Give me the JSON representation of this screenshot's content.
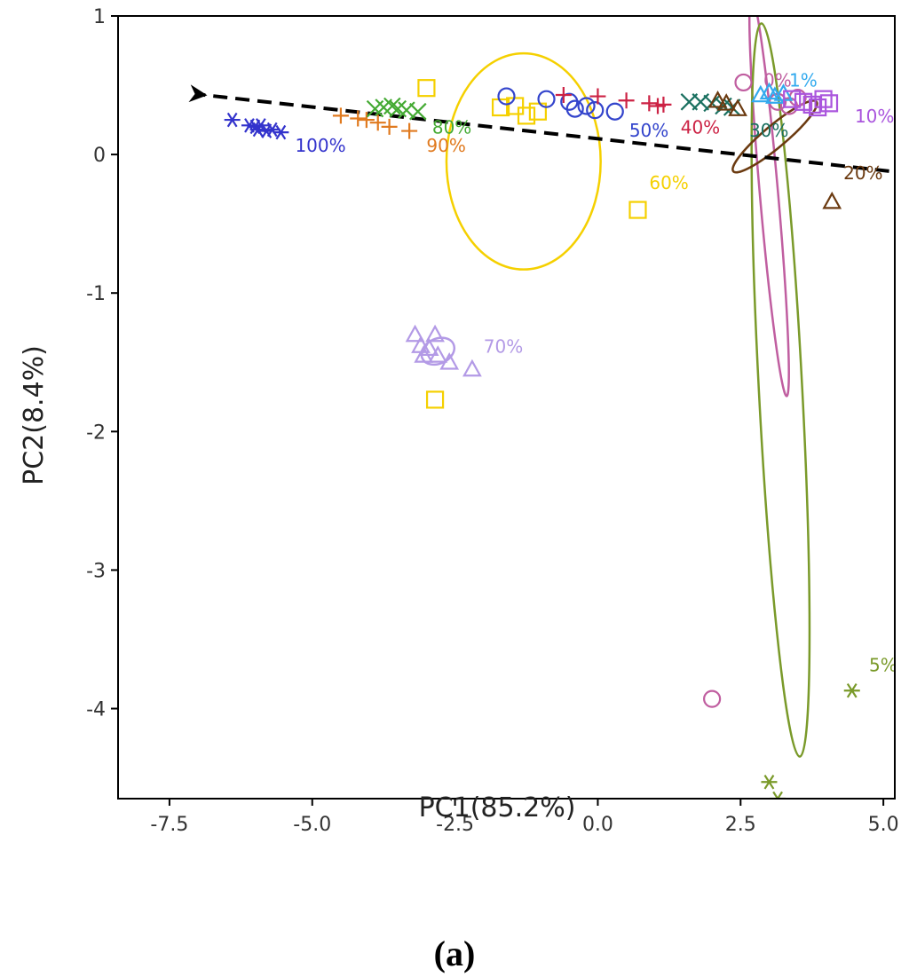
{
  "chart_data": {
    "type": "scatter",
    "title": "",
    "caption": "(a)",
    "xlabel": "PC1(85.2%)",
    "ylabel": "PC2(8.4%)",
    "xlim": [
      -8.4,
      5.2
    ],
    "ylim": [
      -4.65,
      1.0
    ],
    "x_ticks": [
      -7.5,
      -5.0,
      -2.5,
      0.0,
      2.5,
      5.0
    ],
    "x_tick_labels": [
      "-7.5",
      "-5.0",
      "-2.5",
      "0.0",
      "2.5",
      "5.0"
    ],
    "y_ticks": [
      1,
      0,
      -1,
      -2,
      -3,
      -4
    ],
    "y_tick_labels": [
      "1",
      "0",
      "-1",
      "-2",
      "-3",
      "-4"
    ],
    "grid": false,
    "trend_arrow": {
      "from": [
        5.1,
        -0.12
      ],
      "to": [
        -6.9,
        0.43
      ],
      "style": "dashed",
      "color": "#000000"
    },
    "series": [
      {
        "name": "100%",
        "marker": "asterisk",
        "color": "#3333cc",
        "points": [
          [
            -6.4,
            0.25
          ],
          [
            -6.1,
            0.21
          ],
          [
            -6.0,
            0.2
          ],
          [
            -5.95,
            0.18
          ],
          [
            -5.9,
            0.21
          ],
          [
            -5.8,
            0.17
          ],
          [
            -5.7,
            0.18
          ],
          [
            -5.55,
            0.16
          ]
        ],
        "label": {
          "text": "100%",
          "at": [
            -5.3,
            0.02
          ]
        }
      },
      {
        "name": "90%",
        "marker": "plus",
        "color": "#e07a1f",
        "points": [
          [
            -4.5,
            0.28
          ],
          [
            -4.2,
            0.26
          ],
          [
            -4.05,
            0.25
          ],
          [
            -3.85,
            0.23
          ],
          [
            -3.65,
            0.2
          ],
          [
            -3.3,
            0.17
          ]
        ],
        "label": {
          "text": "90%",
          "at": [
            -3.0,
            0.02
          ]
        }
      },
      {
        "name": "80%",
        "marker": "cross",
        "color": "#44aa33",
        "points": [
          [
            -3.9,
            0.33
          ],
          [
            -3.75,
            0.34
          ],
          [
            -3.6,
            0.35
          ],
          [
            -3.5,
            0.33
          ],
          [
            -3.35,
            0.32
          ],
          [
            -3.15,
            0.31
          ]
        ],
        "label": {
          "text": "80%",
          "at": [
            -2.9,
            0.15
          ]
        }
      },
      {
        "name": "70%",
        "marker": "triangle",
        "color": "#b39ae6",
        "points": [
          [
            -3.2,
            -1.3
          ],
          [
            -3.1,
            -1.38
          ],
          [
            -3.05,
            -1.45
          ],
          [
            -2.95,
            -1.4
          ],
          [
            -2.85,
            -1.3
          ],
          [
            -2.8,
            -1.45
          ],
          [
            -2.6,
            -1.5
          ],
          [
            -2.2,
            -1.55
          ]
        ],
        "label": {
          "text": "70%",
          "at": [
            -2.0,
            -1.43
          ]
        }
      },
      {
        "name": "60%",
        "marker": "square",
        "color": "#f5d000",
        "points": [
          [
            -3.0,
            0.48
          ],
          [
            -1.7,
            0.34
          ],
          [
            -1.45,
            0.35
          ],
          [
            -1.25,
            0.28
          ],
          [
            -1.05,
            0.31
          ],
          [
            0.7,
            -0.4
          ],
          [
            -2.85,
            -1.77
          ]
        ],
        "label": {
          "text": "60%",
          "at": [
            0.9,
            -0.25
          ]
        }
      },
      {
        "name": "50%",
        "marker": "circle",
        "color": "#3344cc",
        "points": [
          [
            -1.6,
            0.42
          ],
          [
            -0.5,
            0.38
          ],
          [
            -0.4,
            0.33
          ],
          [
            -0.2,
            0.35
          ],
          [
            -0.05,
            0.32
          ],
          [
            0.3,
            0.31
          ],
          [
            -0.9,
            0.4
          ]
        ],
        "label": {
          "text": "50%",
          "at": [
            0.55,
            0.13
          ]
        }
      },
      {
        "name": "40%",
        "marker": "plus",
        "color": "#cc2244",
        "points": [
          [
            -0.6,
            0.43
          ],
          [
            0.0,
            0.42
          ],
          [
            0.5,
            0.39
          ],
          [
            0.9,
            0.37
          ],
          [
            1.05,
            0.35
          ],
          [
            1.15,
            0.36
          ]
        ],
        "label": {
          "text": "40%",
          "at": [
            1.45,
            0.15
          ]
        }
      },
      {
        "name": "30%",
        "marker": "cross",
        "color": "#1a7060",
        "points": [
          [
            1.6,
            0.38
          ],
          [
            1.8,
            0.38
          ],
          [
            2.0,
            0.37
          ],
          [
            2.2,
            0.35
          ],
          [
            2.35,
            0.34
          ]
        ],
        "label": {
          "text": "30%",
          "at": [
            2.65,
            0.13
          ]
        }
      },
      {
        "name": "20%",
        "marker": "triangle",
        "color": "#6b3a10",
        "points": [
          [
            2.1,
            0.39
          ],
          [
            2.25,
            0.37
          ],
          [
            2.45,
            0.33
          ],
          [
            4.1,
            -0.34
          ]
        ],
        "label": {
          "text": "20%",
          "at": [
            4.3,
            -0.18
          ]
        }
      },
      {
        "name": "0%",
        "marker": "circle",
        "color": "#c05ea0",
        "points": [
          [
            2.55,
            0.52
          ],
          [
            3.15,
            0.38
          ],
          [
            3.35,
            0.35
          ],
          [
            3.5,
            0.41
          ],
          [
            2.0,
            -3.93
          ]
        ],
        "label": {
          "text": "0%",
          "at": [
            2.9,
            0.49
          ]
        }
      },
      {
        "name": "1%",
        "marker": "triangle",
        "color": "#33aaee",
        "points": [
          [
            2.85,
            0.43
          ],
          [
            3.0,
            0.45
          ],
          [
            3.1,
            0.42
          ],
          [
            3.25,
            0.44
          ]
        ],
        "label": {
          "text": "1%",
          "at": [
            3.35,
            0.49
          ]
        }
      },
      {
        "name": "10%",
        "marker": "square",
        "color": "#aa55dd",
        "points": [
          [
            3.4,
            0.4
          ],
          [
            3.6,
            0.38
          ],
          [
            3.75,
            0.36
          ],
          [
            3.85,
            0.34
          ],
          [
            3.95,
            0.4
          ],
          [
            4.05,
            0.37
          ]
        ],
        "label": {
          "text": "10%",
          "at": [
            4.5,
            0.23
          ]
        }
      },
      {
        "name": "5%",
        "marker": "asterisk",
        "color": "#7a9a2a",
        "points": [
          [
            4.45,
            -3.87
          ],
          [
            3.0,
            -4.53
          ],
          [
            3.15,
            -4.65
          ]
        ],
        "label": {
          "text": "5%",
          "at": [
            4.75,
            -3.73
          ]
        }
      }
    ],
    "ellipses": [
      {
        "group": "60%",
        "color": "#f5d000",
        "center": [
          -1.3,
          -0.05
        ],
        "rx": 1.35,
        "ry": 0.78,
        "angle": 0
      },
      {
        "group": "0%",
        "color": "#c05ea0",
        "center": [
          3.0,
          -0.3
        ],
        "rx": 0.16,
        "ry": 1.45,
        "angle": -5
      },
      {
        "group": "5%",
        "color": "#7a9a2a",
        "center": [
          3.2,
          -1.7
        ],
        "rx": 0.38,
        "ry": 2.65,
        "angle": -3
      },
      {
        "group": "20%",
        "color": "#6b3a10",
        "center": [
          3.1,
          0.13
        ],
        "rx": 0.95,
        "ry": 0.08,
        "angle": -40
      },
      {
        "group": "70%",
        "color": "#b39ae6",
        "center": [
          -2.8,
          -1.42
        ],
        "rx": 0.3,
        "ry": 0.09,
        "angle": -25
      }
    ]
  }
}
